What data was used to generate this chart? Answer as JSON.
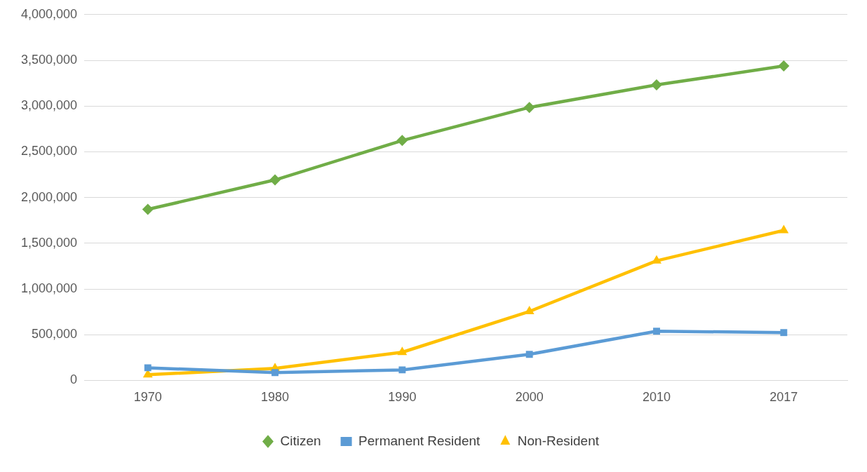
{
  "chart_data": {
    "type": "line",
    "categories": [
      "1970",
      "1980",
      "1990",
      "2000",
      "2010",
      "2017"
    ],
    "series": [
      {
        "name": "Citizen",
        "color": "#70ad47",
        "marker": "diamond",
        "values": [
          1870000,
          2192000,
          2623000,
          2985000,
          3231000,
          3438000
        ]
      },
      {
        "name": "Permanent Resident",
        "color": "#5b9bd5",
        "marker": "square",
        "values": [
          138000,
          85000,
          115000,
          285000,
          538000,
          523000
        ]
      },
      {
        "name": "Non-Resident",
        "color": "#ffc000",
        "marker": "triangle",
        "values": [
          62000,
          131000,
          308000,
          754000,
          1308000,
          1640000
        ]
      }
    ],
    "ylim": [
      0,
      4000000
    ],
    "yticks": [
      {
        "value": 0,
        "label": "0"
      },
      {
        "value": 500000,
        "label": "500,000"
      },
      {
        "value": 1000000,
        "label": "1,000,000"
      },
      {
        "value": 1500000,
        "label": "1,500,000"
      },
      {
        "value": 2000000,
        "label": "2,000,000"
      },
      {
        "value": 2500000,
        "label": "2,500,000"
      },
      {
        "value": 3000000,
        "label": "3,000,000"
      },
      {
        "value": 3500000,
        "label": "3,500,000"
      },
      {
        "value": 4000000,
        "label": "4,000,000"
      }
    ],
    "grid": "y",
    "legend": "bottom",
    "line_style": "solid"
  }
}
